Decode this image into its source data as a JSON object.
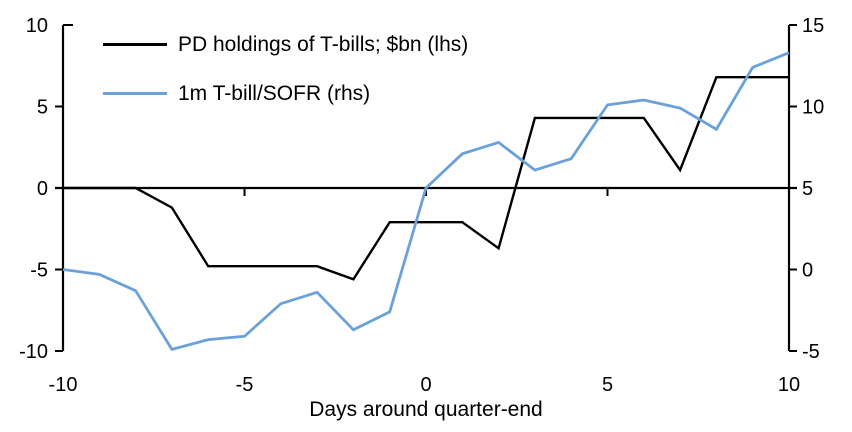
{
  "chart_data": {
    "type": "line",
    "xlabel": "Days around quarter-end",
    "x": [
      -10,
      -9,
      -8,
      -7,
      -6,
      -5,
      -4,
      -3,
      -2,
      -1,
      0,
      1,
      2,
      3,
      4,
      5,
      6,
      7,
      8,
      9,
      10
    ],
    "x_ticks": [
      "-10",
      "-5",
      "0",
      "5",
      "10"
    ],
    "x_tick_values": [
      -10,
      -5,
      0,
      5,
      10
    ],
    "left_axis": {
      "ticks": [
        "10",
        "5",
        "0",
        "-5",
        "-10"
      ],
      "tick_values": [
        10,
        5,
        0,
        -5,
        -10
      ],
      "range": [
        -10,
        10
      ]
    },
    "right_axis": {
      "ticks": [
        "15",
        "10",
        "5",
        "0",
        "-5"
      ],
      "tick_values": [
        15,
        10,
        5,
        0,
        -5
      ],
      "range": [
        -5,
        15
      ]
    },
    "grid": false,
    "legend_position": "top-left",
    "series": [
      {
        "name": "PD holdings of T-bills; $bn (lhs)",
        "axis": "left",
        "color": "#000000",
        "values": [
          0,
          0,
          0,
          -1.2,
          -4.8,
          -4.8,
          -4.8,
          -4.8,
          -5.6,
          -2.1,
          -2.1,
          -2.1,
          -3.7,
          4.3,
          4.3,
          4.3,
          4.3,
          1.1,
          6.8,
          6.8,
          6.8
        ]
      },
      {
        "name": "1m T-bill/SOFR (rhs)",
        "axis": "right",
        "color": "#6BA1D9",
        "values": [
          0,
          -0.3,
          -1.3,
          -4.9,
          -4.3,
          -4.1,
          -2.1,
          -1.4,
          -3.7,
          -2.6,
          5,
          7.1,
          7.8,
          6.1,
          6.8,
          10.1,
          10.4,
          9.9,
          8.6,
          12.4,
          13.3
        ]
      }
    ]
  }
}
